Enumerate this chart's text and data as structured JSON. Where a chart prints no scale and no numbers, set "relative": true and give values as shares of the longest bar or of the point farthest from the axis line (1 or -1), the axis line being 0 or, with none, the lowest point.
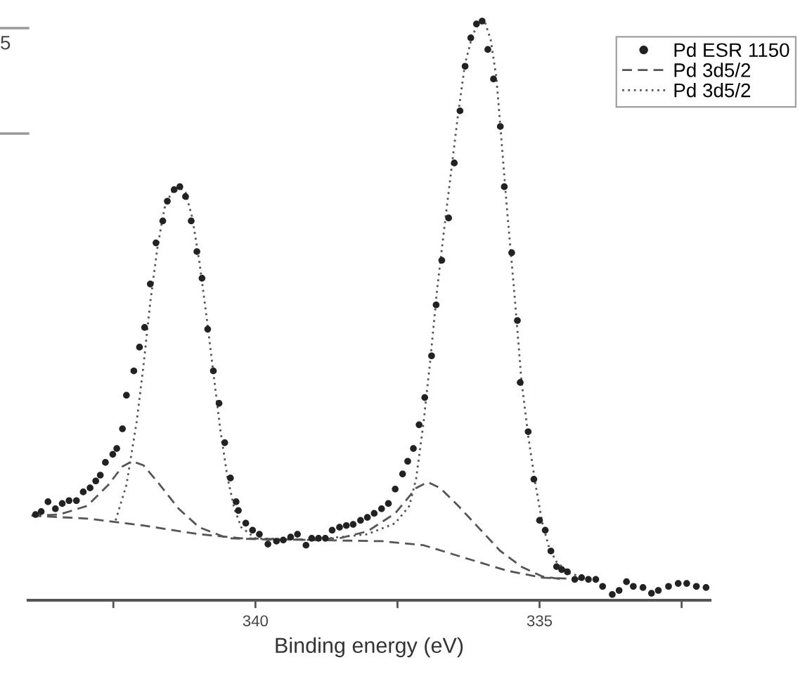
{
  "chart_data": {
    "type": "scatter",
    "xlabel": "Binding energy (eV)",
    "relative": true,
    "xlim": [
      344,
      332
    ],
    "xticks": [
      {
        "value": 342.5,
        "label": null
      },
      340,
      {
        "value": 337.5,
        "label": null
      },
      335,
      {
        "value": 332.5,
        "label": null
      }
    ],
    "tick_labels": "x",
    "grid": false,
    "legend": "top right",
    "annotations": [
      "5"
    ],
    "series": [
      {
        "name": "Pd ESR 1150",
        "marker": "circle",
        "color": "#222222",
        "x": [
          343.87,
          343.77,
          343.65,
          343.52,
          343.4,
          343.28,
          343.15,
          343.03,
          342.91,
          342.81,
          342.73,
          342.64,
          342.51,
          342.44,
          342.34,
          342.27,
          342.14,
          342.04,
          341.95,
          341.85,
          341.75,
          341.63,
          341.55,
          341.43,
          341.33,
          341.23,
          341.13,
          341.03,
          340.94,
          340.84,
          340.74,
          340.64,
          340.54,
          340.44,
          340.34,
          340.3,
          340.17,
          340.05,
          339.93,
          339.78,
          339.63,
          339.51,
          339.38,
          339.26,
          339.11,
          339.01,
          338.89,
          338.77,
          338.65,
          338.52,
          338.4,
          338.28,
          338.15,
          338.03,
          337.91,
          337.78,
          337.66,
          337.54,
          337.41,
          337.32,
          337.22,
          337.12,
          337.02,
          336.9,
          336.82,
          336.72,
          336.6,
          336.5,
          336.4,
          336.31,
          336.21,
          336.11,
          336.01,
          335.91,
          335.81,
          335.69,
          335.62,
          335.49,
          335.39,
          335.34,
          335.2,
          335.1,
          335.0,
          334.9,
          334.8,
          334.7,
          334.61,
          334.51,
          334.38,
          334.26,
          334.14,
          334.01,
          333.89,
          333.72,
          333.6,
          333.47,
          333.35,
          333.18,
          333.03,
          332.91,
          332.73,
          332.56,
          332.41,
          332.24,
          332.07
        ],
        "values": [
          0.148,
          0.153,
          0.17,
          0.158,
          0.167,
          0.172,
          0.172,
          0.187,
          0.194,
          0.206,
          0.216,
          0.238,
          0.252,
          0.262,
          0.296,
          0.354,
          0.396,
          0.437,
          0.471,
          0.546,
          0.617,
          0.655,
          0.689,
          0.709,
          0.714,
          0.697,
          0.655,
          0.602,
          0.556,
          0.468,
          0.396,
          0.34,
          0.272,
          0.211,
          0.17,
          0.155,
          0.133,
          0.121,
          0.114,
          0.097,
          0.102,
          0.104,
          0.109,
          0.114,
          0.095,
          0.107,
          0.107,
          0.107,
          0.121,
          0.126,
          0.129,
          0.131,
          0.138,
          0.143,
          0.15,
          0.158,
          0.167,
          0.192,
          0.218,
          0.24,
          0.262,
          0.303,
          0.35,
          0.422,
          0.51,
          0.587,
          0.66,
          0.755,
          0.845,
          0.922,
          0.971,
          0.995,
          1.0,
          0.951,
          0.9,
          0.818,
          0.714,
          0.6,
          0.483,
          0.376,
          0.291,
          0.209,
          0.138,
          0.121,
          0.085,
          0.058,
          0.053,
          0.049,
          0.036,
          0.039,
          0.036,
          0.036,
          0.024,
          0.01,
          0.017,
          0.032,
          0.024,
          0.022,
          0.012,
          0.017,
          0.024,
          0.029,
          0.029,
          0.024,
          0.022
        ]
      },
      {
        "name": "Pd 3d5/2",
        "type": "line",
        "line_style": "dashed",
        "color": "#555555",
        "x": [
          343.94,
          343.45,
          342.96,
          342.59,
          342.34,
          342.17,
          341.97,
          341.72,
          341.35,
          340.99,
          340.49,
          339.51,
          338.52,
          338.03,
          337.54,
          337.17,
          336.97,
          336.75,
          336.43,
          336.06,
          335.69,
          335.32,
          334.95,
          334.58
        ],
        "values": [
          0.146,
          0.148,
          0.163,
          0.199,
          0.231,
          0.24,
          0.233,
          0.204,
          0.158,
          0.126,
          0.107,
          0.104,
          0.107,
          0.119,
          0.15,
          0.194,
          0.204,
          0.194,
          0.163,
          0.124,
          0.085,
          0.058,
          0.041,
          0.036
        ]
      },
      {
        "name": "Pd 3d5/2",
        "type": "line",
        "line_style": "dotted",
        "color": "#555555",
        "x": [
          342.46,
          342.27,
          342.09,
          341.97,
          341.85,
          341.72,
          341.6,
          341.48,
          341.35,
          341.23,
          341.11,
          340.99,
          340.86,
          340.74,
          340.62,
          340.49,
          340.37,
          340.25,
          340.0,
          339.01,
          338.03,
          337.54,
          337.29,
          337.17,
          337.04,
          336.92,
          336.8,
          336.67,
          336.55,
          336.43,
          336.31,
          336.18,
          336.06,
          335.96,
          335.86,
          335.76,
          335.67,
          335.57,
          335.44,
          335.32,
          335.2,
          335.07,
          334.95,
          334.83,
          334.7,
          334.46,
          334.09
        ],
        "values": [
          0.138,
          0.199,
          0.308,
          0.405,
          0.515,
          0.612,
          0.677,
          0.704,
          0.714,
          0.704,
          0.66,
          0.587,
          0.49,
          0.393,
          0.296,
          0.211,
          0.158,
          0.126,
          0.107,
          0.104,
          0.114,
          0.133,
          0.163,
          0.211,
          0.308,
          0.417,
          0.539,
          0.648,
          0.745,
          0.842,
          0.927,
          0.976,
          0.998,
          0.998,
          0.968,
          0.903,
          0.794,
          0.672,
          0.527,
          0.381,
          0.284,
          0.199,
          0.133,
          0.09,
          0.066,
          0.046,
          0.036
        ]
      },
      {
        "type": "line",
        "line_style": "dashed",
        "color": "#555555",
        "x": [
          343.94,
          342.96,
          341.97,
          340.99,
          340.25,
          339.01,
          337.78,
          337.04,
          336.31,
          335.57,
          334.95,
          334.09
        ],
        "values": [
          0.146,
          0.141,
          0.129,
          0.114,
          0.107,
          0.104,
          0.102,
          0.095,
          0.073,
          0.051,
          0.039,
          0.036
        ]
      }
    ]
  }
}
